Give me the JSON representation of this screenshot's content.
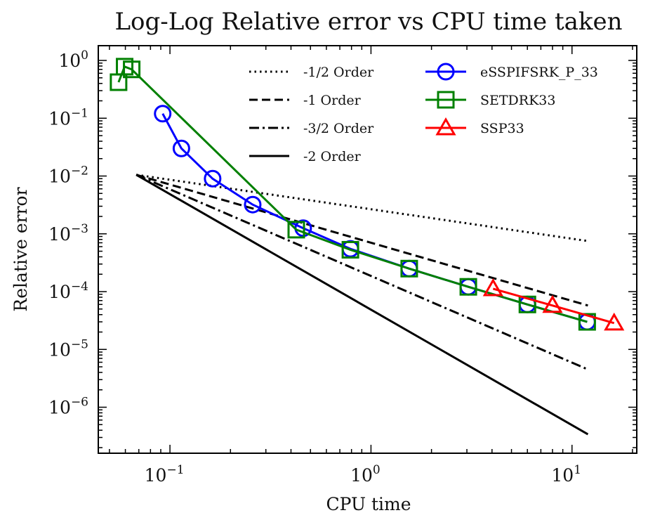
{
  "chart_data": {
    "type": "line",
    "scale": "log-log",
    "title": "Log-Log Relative error vs CPU time taken",
    "xlabel": "CPU time",
    "ylabel": "Relative error",
    "xlim": [
      0.044,
      21
    ],
    "ylim": [
      1.6e-07,
      1.8
    ],
    "x_ticks": [
      {
        "value": 0.1,
        "base": "10",
        "exp": "−1"
      },
      {
        "value": 1,
        "base": "10",
        "exp": "0"
      },
      {
        "value": 10,
        "base": "10",
        "exp": "1"
      }
    ],
    "y_ticks": [
      {
        "value": 1,
        "base": "10",
        "exp": "0"
      },
      {
        "value": 0.1,
        "base": "10",
        "exp": "−1"
      },
      {
        "value": 0.01,
        "base": "10",
        "exp": "−2"
      },
      {
        "value": 0.001,
        "base": "10",
        "exp": "−3"
      },
      {
        "value": 0.0001,
        "base": "10",
        "exp": "−4"
      },
      {
        "value": 1e-05,
        "base": "10",
        "exp": "−5"
      },
      {
        "value": 1e-06,
        "base": "10",
        "exp": "−6"
      }
    ],
    "reference_lines": [
      {
        "name": "-1/2 Order",
        "style": "dotted",
        "color": "#000000",
        "x": [
          0.068,
          12
        ],
        "y": [
          0.0105,
          0.00075
        ]
      },
      {
        "name": "-1 Order",
        "style": "dashed",
        "color": "#000000",
        "x": [
          0.068,
          12
        ],
        "y": [
          0.0105,
          5.75e-05
        ]
      },
      {
        "name": "-3/2 Order",
        "style": "dashdot",
        "color": "#000000",
        "x": [
          0.068,
          12
        ],
        "y": [
          0.0105,
          4.5e-06
        ]
      },
      {
        "name": "-2 Order",
        "style": "solid",
        "color": "#000000",
        "x": [
          0.068,
          12
        ],
        "y": [
          0.0105,
          3.4e-07
        ]
      }
    ],
    "series": [
      {
        "name": "eSSPIFSRK_P_33",
        "color": "#0000ff",
        "marker": "circle",
        "x": [
          0.092,
          0.114,
          0.163,
          0.258,
          0.46,
          0.79,
          1.55,
          3.05,
          6.0,
          11.9
        ],
        "y": [
          0.12,
          0.03,
          0.009,
          0.0032,
          0.00125,
          0.00055,
          0.00025,
          0.000121,
          6e-05,
          3e-05
        ]
      },
      {
        "name": "SETDRK33",
        "color": "#008000",
        "marker": "square",
        "x": [
          0.0555,
          0.0595,
          0.0645,
          0.425,
          0.79,
          1.55,
          3.05,
          6.0,
          11.9
        ],
        "y": [
          0.42,
          0.78,
          0.7,
          0.00118,
          0.00053,
          0.00025,
          0.000121,
          6e-05,
          3e-05
        ]
      },
      {
        "name": "SSP33",
        "color": "#ff0000",
        "marker": "triangle",
        "x": [
          4.05,
          8.0,
          16.2
        ],
        "y": [
          0.000112,
          5.75e-05,
          2.85e-05
        ]
      }
    ]
  }
}
